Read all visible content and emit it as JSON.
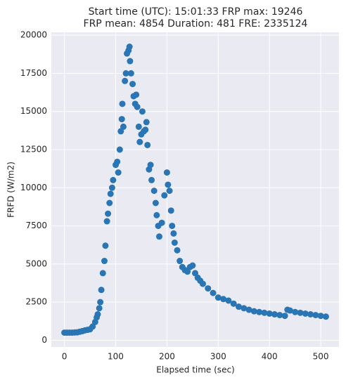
{
  "chart_data": {
    "type": "scatter",
    "title": "Start time (UTC): 15:01:33 FRP max: 19246",
    "subtitle": "FRP mean: 4854 Duration: 481 FRE: 2335124",
    "xlabel": "Elapsed time (sec)",
    "ylabel": "FRFD (W/m2)",
    "color": "#2a75b3",
    "grid": true,
    "x": [
      0,
      5,
      10,
      15,
      20,
      25,
      30,
      35,
      40,
      45,
      50,
      55,
      60,
      63,
      65,
      68,
      70,
      72,
      75,
      78,
      80,
      83,
      85,
      88,
      90,
      93,
      95,
      100,
      103,
      105,
      108,
      110,
      112,
      113,
      115,
      118,
      120,
      122,
      125,
      127,
      128,
      130,
      133,
      135,
      138,
      140,
      142,
      145,
      147,
      150,
      152,
      155,
      158,
      160,
      162,
      165,
      168,
      170,
      175,
      178,
      180,
      183,
      185,
      190,
      195,
      200,
      202,
      205,
      208,
      210,
      213,
      215,
      220,
      225,
      230,
      235,
      240,
      245,
      250,
      255,
      260,
      265,
      270,
      280,
      290,
      300,
      310,
      320,
      330,
      340,
      350,
      360,
      370,
      380,
      390,
      400,
      410,
      420,
      430,
      435,
      440,
      450,
      460,
      470,
      480,
      490,
      500,
      510
    ],
    "values": [
      500,
      500,
      500,
      500,
      510,
      520,
      560,
      600,
      650,
      680,
      720,
      900,
      1200,
      1500,
      1700,
      2100,
      2500,
      3300,
      4400,
      5200,
      6200,
      7800,
      8300,
      9000,
      9600,
      10000,
      10500,
      11500,
      11700,
      11000,
      12500,
      13700,
      14500,
      15500,
      14000,
      17000,
      17500,
      18800,
      19000,
      19246,
      18300,
      17500,
      16800,
      16000,
      15500,
      16100,
      15300,
      14000,
      13000,
      13500,
      15000,
      13700,
      13800,
      14300,
      12800,
      11200,
      11500,
      10500,
      9800,
      9000,
      8200,
      7500,
      6800,
      7700,
      9500,
      11000,
      10200,
      9800,
      8500,
      7500,
      7000,
      6400,
      5900,
      5200,
      4800,
      4600,
      4500,
      4800,
      4900,
      4400,
      4100,
      3900,
      3700,
      3400,
      3100,
      2800,
      2700,
      2600,
      2400,
      2200,
      2100,
      2000,
      1900,
      1850,
      1800,
      1750,
      1700,
      1650,
      1600,
      2000,
      1950,
      1850,
      1800,
      1750,
      1700,
      1650,
      1600,
      1550
    ],
    "xlim": [
      -25.5,
      535.5
    ],
    "xticks": [
      0,
      100,
      200,
      300,
      400,
      500
    ],
    "ylim": [
      -440,
      20190
    ],
    "yticks": [
      0,
      2500,
      5000,
      7500,
      10000,
      12500,
      15000,
      17500,
      20000
    ]
  }
}
